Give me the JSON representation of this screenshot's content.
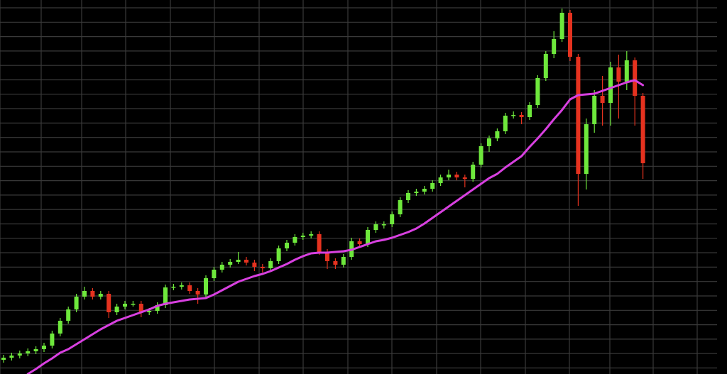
{
  "chart_data": {
    "type": "candlestick",
    "title": "",
    "xlabel": "",
    "ylabel": "",
    "ylim": [
      0,
      105.4
    ],
    "grid": true,
    "legend": "none",
    "colors": {
      "background": "#000000",
      "grid": "#3a3a3a",
      "up": "#6ee83c",
      "down": "#e5321f",
      "moving_average": "#d840e0"
    },
    "candles": [
      [
        4.0,
        5.4,
        3.2,
        4.6
      ],
      [
        4.6,
        6.0,
        3.8,
        5.2
      ],
      [
        5.2,
        6.6,
        4.4,
        5.8
      ],
      [
        5.8,
        7.2,
        5.0,
        6.4
      ],
      [
        6.4,
        7.8,
        5.6,
        7.0
      ],
      [
        7.0,
        8.8,
        6.2,
        8.0
      ],
      [
        8.0,
        12.2,
        7.2,
        11.4
      ],
      [
        11.4,
        15.8,
        10.6,
        15.0
      ],
      [
        15.0,
        19.0,
        14.2,
        18.2
      ],
      [
        18.2,
        22.6,
        17.4,
        21.8
      ],
      [
        21.8,
        24.6,
        21.0,
        23.4
      ],
      [
        23.4,
        24.2,
        21.0,
        21.8
      ],
      [
        21.8,
        23.4,
        21.0,
        22.6
      ],
      [
        22.6,
        23.4,
        15.8,
        17.4
      ],
      [
        17.4,
        19.8,
        16.6,
        19.0
      ],
      [
        19.0,
        20.6,
        18.2,
        19.8
      ],
      [
        19.8,
        20.6,
        19.0,
        19.8
      ],
      [
        19.8,
        20.6,
        16.0,
        17.4
      ],
      [
        17.4,
        18.6,
        16.6,
        17.8
      ],
      [
        17.8,
        20.2,
        17.0,
        19.4
      ],
      [
        19.4,
        25.2,
        18.6,
        24.4
      ],
      [
        24.4,
        25.4,
        23.6,
        24.6
      ],
      [
        24.6,
        25.8,
        23.8,
        25.0
      ],
      [
        25.0,
        25.8,
        22.6,
        23.4
      ],
      [
        23.4,
        24.2,
        19.8,
        22.4
      ],
      [
        22.4,
        27.8,
        21.6,
        27.0
      ],
      [
        27.0,
        30.2,
        26.2,
        29.4
      ],
      [
        29.4,
        31.6,
        28.6,
        30.8
      ],
      [
        30.8,
        32.4,
        30.0,
        31.6
      ],
      [
        31.6,
        34.4,
        31.0,
        32.2
      ],
      [
        32.2,
        33.0,
        30.6,
        31.4
      ],
      [
        31.4,
        32.2,
        29.0,
        30.2
      ],
      [
        30.2,
        31.0,
        28.6,
        29.8
      ],
      [
        29.8,
        32.6,
        29.0,
        31.8
      ],
      [
        31.8,
        36.2,
        31.0,
        35.4
      ],
      [
        35.4,
        37.8,
        34.6,
        37.0
      ],
      [
        37.0,
        39.4,
        36.2,
        38.6
      ],
      [
        38.6,
        39.8,
        37.8,
        39.0
      ],
      [
        39.0,
        40.2,
        38.2,
        39.4
      ],
      [
        39.4,
        40.2,
        33.6,
        34.4
      ],
      [
        34.4,
        35.2,
        29.6,
        31.8
      ],
      [
        31.8,
        32.6,
        29.6,
        30.8
      ],
      [
        30.8,
        33.8,
        30.0,
        33.0
      ],
      [
        33.0,
        38.4,
        32.2,
        37.4
      ],
      [
        37.4,
        38.2,
        35.8,
        36.6
      ],
      [
        36.6,
        41.4,
        35.8,
        40.6
      ],
      [
        40.6,
        43.0,
        39.8,
        42.2
      ],
      [
        42.2,
        43.0,
        41.0,
        42.2
      ],
      [
        42.2,
        45.8,
        41.4,
        45.0
      ],
      [
        45.0,
        49.8,
        44.2,
        49.0
      ],
      [
        49.0,
        51.8,
        48.2,
        51.0
      ],
      [
        51.0,
        52.2,
        50.2,
        51.4
      ],
      [
        51.4,
        53.0,
        50.6,
        52.2
      ],
      [
        52.2,
        54.6,
        51.4,
        53.8
      ],
      [
        53.8,
        56.2,
        53.0,
        55.4
      ],
      [
        55.4,
        57.6,
        54.6,
        56.2
      ],
      [
        56.2,
        57.0,
        54.6,
        55.4
      ],
      [
        55.4,
        56.2,
        52.6,
        55.0
      ],
      [
        55.0,
        59.8,
        54.2,
        59.0
      ],
      [
        59.0,
        65.0,
        58.2,
        64.2
      ],
      [
        64.2,
        67.2,
        62.6,
        66.4
      ],
      [
        66.4,
        69.2,
        65.6,
        68.4
      ],
      [
        68.4,
        73.6,
        67.6,
        72.8
      ],
      [
        72.8,
        74.0,
        72.0,
        73.0
      ],
      [
        73.0,
        73.8,
        70.4,
        72.4
      ],
      [
        72.4,
        76.6,
        71.6,
        75.8
      ],
      [
        75.8,
        84.2,
        75.0,
        83.4
      ],
      [
        83.4,
        91.0,
        82.6,
        90.2
      ],
      [
        90.2,
        96.6,
        89.0,
        94.4
      ],
      [
        94.4,
        103.0,
        93.6,
        101.8
      ],
      [
        101.8,
        102.6,
        88.2,
        89.4
      ],
      [
        89.4,
        90.2,
        47.4,
        56.4
      ],
      [
        56.4,
        72.0,
        52.0,
        70.4
      ],
      [
        70.4,
        80.0,
        68.0,
        78.4
      ],
      [
        78.4,
        84.0,
        70.0,
        76.4
      ],
      [
        76.4,
        88.0,
        70.0,
        86.4
      ],
      [
        86.4,
        90.0,
        72.0,
        82.4
      ],
      [
        82.4,
        91.0,
        80.0,
        88.4
      ],
      [
        88.4,
        89.2,
        70.0,
        78.4
      ],
      [
        78.4,
        79.2,
        55.0,
        59.4
      ]
    ],
    "candle_fields": [
      "open",
      "high",
      "low",
      "close"
    ],
    "moving_average": [
      null,
      null,
      null,
      0,
      1.4,
      3.0,
      4.4,
      6.0,
      7.0,
      8.4,
      9.8,
      11.2,
      12.6,
      13.8,
      15.0,
      15.8,
      16.6,
      17.4,
      18.2,
      19.2,
      19.8,
      20.2,
      20.6,
      21.0,
      21.2,
      21.4,
      22.4,
      23.6,
      24.8,
      26.0,
      26.8,
      27.6,
      28.2,
      29.0,
      30.0,
      31.0,
      32.2,
      33.2,
      34.0,
      34.2,
      34.2,
      34.4,
      34.6,
      35.0,
      35.8,
      36.6,
      37.4,
      37.8,
      38.4,
      39.2,
      40.0,
      41.0,
      42.4,
      44.0,
      45.6,
      47.2,
      48.8,
      50.4,
      52.0,
      53.6,
      55.2,
      56.4,
      58.2,
      59.8,
      61.4,
      64.0,
      66.4,
      69.0,
      71.8,
      74.4,
      77.4,
      78.6,
      78.8,
      79.0,
      79.8,
      80.6,
      81.4,
      82.2,
      82.8,
      81.4
    ]
  }
}
